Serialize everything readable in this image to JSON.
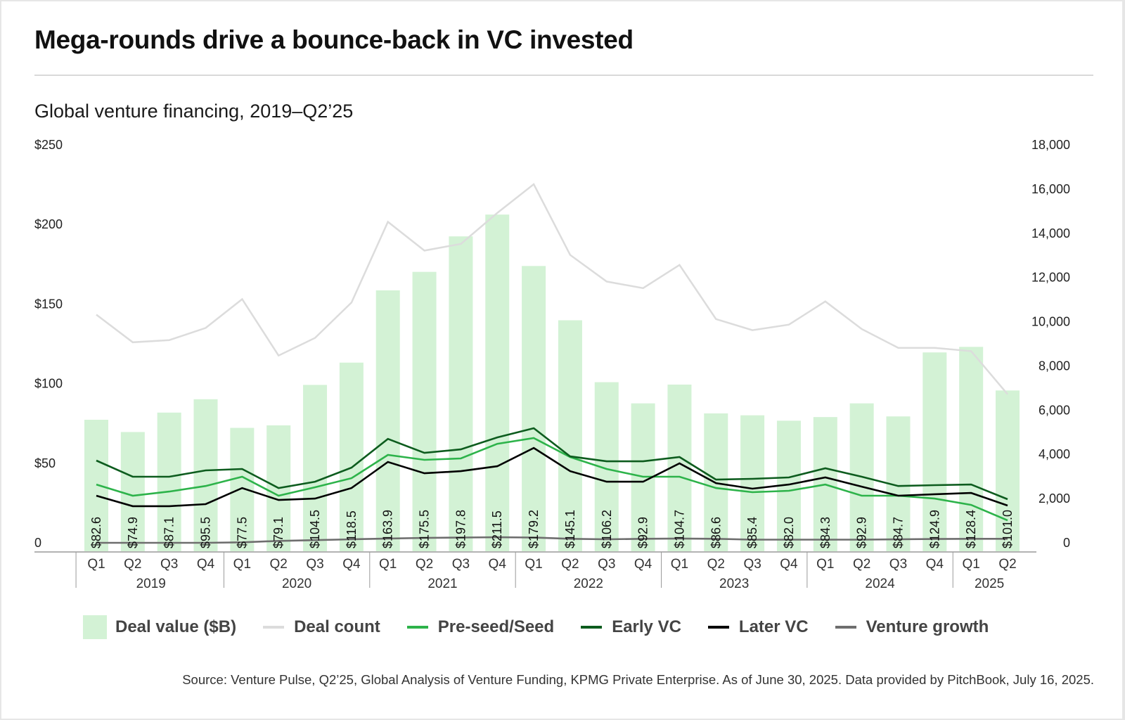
{
  "title": "Mega-rounds drive a bounce-back in VC invested",
  "subtitle": "Global venture financing, 2019–Q2’25",
  "source": "Source: Venture Pulse, Q2’25, Global Analysis of Venture Funding, KPMG Private Enterprise. As of June 30, 2025. Data provided by PitchBook, July 16, 2025.",
  "colors": {
    "bar": "#d3f2d5",
    "deal_count": "#dcdcdc",
    "pre_seed": "#2db34a",
    "early_vc": "#0d5c1e",
    "later_vc": "#000000",
    "venture_growth": "#6e6e6e",
    "axis": "#9a9a9a"
  },
  "legend": [
    {
      "label": "Deal value ($B)",
      "kind": "bar",
      "color_key": "bar"
    },
    {
      "label": "Deal count",
      "kind": "line",
      "color_key": "deal_count"
    },
    {
      "label": "Pre-seed/Seed",
      "kind": "line",
      "color_key": "pre_seed"
    },
    {
      "label": "Early VC",
      "kind": "line",
      "color_key": "early_vc"
    },
    {
      "label": "Later VC",
      "kind": "line",
      "color_key": "later_vc"
    },
    {
      "label": "Venture growth",
      "kind": "line",
      "color_key": "venture_growth"
    }
  ],
  "chart_data": {
    "type": "bar",
    "title": "Mega-rounds drive a bounce-back in VC invested",
    "subtitle": "Global venture financing, 2019–Q2’25",
    "categories": [
      "Q1",
      "Q2",
      "Q3",
      "Q4",
      "Q1",
      "Q2",
      "Q3",
      "Q4",
      "Q1",
      "Q2",
      "Q3",
      "Q4",
      "Q1",
      "Q2",
      "Q3",
      "Q4",
      "Q1",
      "Q2",
      "Q3",
      "Q4",
      "Q1",
      "Q2",
      "Q3",
      "Q4",
      "Q1",
      "Q2"
    ],
    "year_groups": [
      {
        "label": "2019",
        "count": 4
      },
      {
        "label": "2020",
        "count": 4
      },
      {
        "label": "2021",
        "count": 4
      },
      {
        "label": "2022",
        "count": 4
      },
      {
        "label": "2023",
        "count": 4
      },
      {
        "label": "2024",
        "count": 4
      },
      {
        "label": "2025",
        "count": 2
      }
    ],
    "left_axis": {
      "min": 0,
      "max": 250,
      "ticks": [
        0,
        50,
        100,
        150,
        200,
        250
      ],
      "tick_labels": [
        "0",
        "$50",
        "$100",
        "$150",
        "$200",
        "$250"
      ]
    },
    "right_axis": {
      "min": 0,
      "max": 18000,
      "ticks": [
        0,
        2000,
        4000,
        6000,
        8000,
        10000,
        12000,
        14000,
        16000,
        18000
      ],
      "tick_labels": [
        "0",
        "2,000",
        "4,000",
        "6,000",
        "8,000",
        "10,000",
        "12,000",
        "14,000",
        "16,000",
        "18,000"
      ]
    },
    "grid": false,
    "legend_position": "bottom",
    "series": [
      {
        "name": "Deal value ($B)",
        "type": "bar",
        "axis": "left",
        "color_key": "bar",
        "values": [
          82.6,
          74.9,
          87.1,
          95.5,
          77.5,
          79.1,
          104.5,
          118.5,
          163.9,
          175.5,
          197.8,
          211.5,
          179.2,
          145.1,
          106.2,
          92.9,
          104.7,
          86.6,
          85.4,
          82.0,
          84.3,
          92.9,
          84.7,
          124.9,
          128.4,
          101.0
        ],
        "labels": [
          "$82.6",
          "$74.9",
          "$87.1",
          "$95.5",
          "$77.5",
          "$79.1",
          "$104.5",
          "$118.5",
          "$163.9",
          "$175.5",
          "$197.8",
          "$211.5",
          "$179.2",
          "$145.1",
          "$106.2",
          "$92.9",
          "$104.7",
          "$86.6",
          "$85.4",
          "$82.0",
          "$84.3",
          "$92.9",
          "$84.7",
          "$124.9",
          "$128.4",
          "$101.0"
        ]
      },
      {
        "name": "Deal count",
        "type": "line",
        "axis": "right",
        "color_key": "deal_count",
        "values": [
          10700,
          9450,
          9550,
          10100,
          11400,
          8850,
          9650,
          11250,
          14900,
          13600,
          13900,
          15300,
          16600,
          13400,
          12200,
          11900,
          12950,
          10500,
          10000,
          10250,
          11300,
          10050,
          9200,
          9200,
          9050,
          7100
        ]
      },
      {
        "name": "Pre-seed/Seed",
        "type": "line",
        "axis": "left",
        "color_key": "pre_seed",
        "values": [
          41.9,
          34.9,
          37.5,
          41.0,
          46.8,
          34.9,
          40.2,
          45.9,
          60.5,
          57.4,
          58.3,
          67.5,
          71.1,
          59.2,
          51.7,
          46.8,
          46.8,
          39.7,
          37.1,
          38.0,
          41.9,
          34.9,
          34.9,
          33.1,
          29.1,
          19.4
        ]
      },
      {
        "name": "Early VC",
        "type": "line",
        "axis": "left",
        "color_key": "early_vc",
        "values": [
          57.0,
          46.8,
          46.8,
          50.8,
          51.7,
          39.7,
          43.7,
          52.5,
          70.6,
          61.8,
          64.0,
          71.5,
          77.3,
          59.6,
          56.5,
          56.5,
          59.2,
          45.0,
          45.5,
          46.4,
          52.1,
          46.8,
          41.0,
          41.5,
          41.9,
          32.7
        ]
      },
      {
        "name": "Later VC",
        "type": "line",
        "axis": "left",
        "color_key": "later_vc",
        "values": [
          34.9,
          28.3,
          28.3,
          29.6,
          39.7,
          32.2,
          33.1,
          39.7,
          56.1,
          49.0,
          50.3,
          53.4,
          64.9,
          50.3,
          43.7,
          43.7,
          55.2,
          42.8,
          39.3,
          41.9,
          46.4,
          40.6,
          34.9,
          35.8,
          36.6,
          28.7
        ]
      },
      {
        "name": "Venture growth",
        "type": "line",
        "axis": "left",
        "color_key": "venture_growth",
        "values": [
          5.3,
          5.3,
          5.3,
          5.3,
          5.6,
          6.5,
          7.0,
          7.5,
          8.0,
          8.4,
          8.6,
          8.8,
          8.6,
          7.8,
          7.5,
          7.8,
          8.0,
          7.8,
          7.3,
          7.3,
          7.3,
          7.3,
          7.5,
          7.7,
          7.8,
          7.8
        ]
      }
    ]
  }
}
